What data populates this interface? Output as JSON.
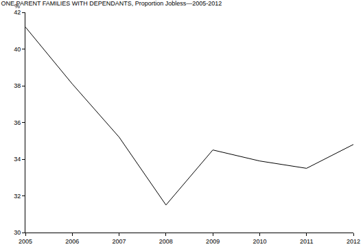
{
  "chart_data": {
    "type": "line",
    "title": "ONE PARENT FAMILIES WITH DEPENDANTS, Proportion Jobless—2005-2012",
    "y_label": "%",
    "x": [
      2005,
      2006,
      2007,
      2008,
      2009,
      2010,
      2011,
      2012
    ],
    "values": [
      41.2,
      38.1,
      35.2,
      31.5,
      34.5,
      33.9,
      33.5,
      34.8
    ],
    "color": "#000000",
    "xlim": [
      2005,
      2012
    ],
    "xticks": [
      2005,
      2006,
      2007,
      2008,
      2009,
      2010,
      2011,
      2012
    ],
    "ylim": [
      30,
      42
    ],
    "yticks": [
      30,
      32,
      34,
      36,
      38,
      40,
      42
    ],
    "grid": false
  }
}
